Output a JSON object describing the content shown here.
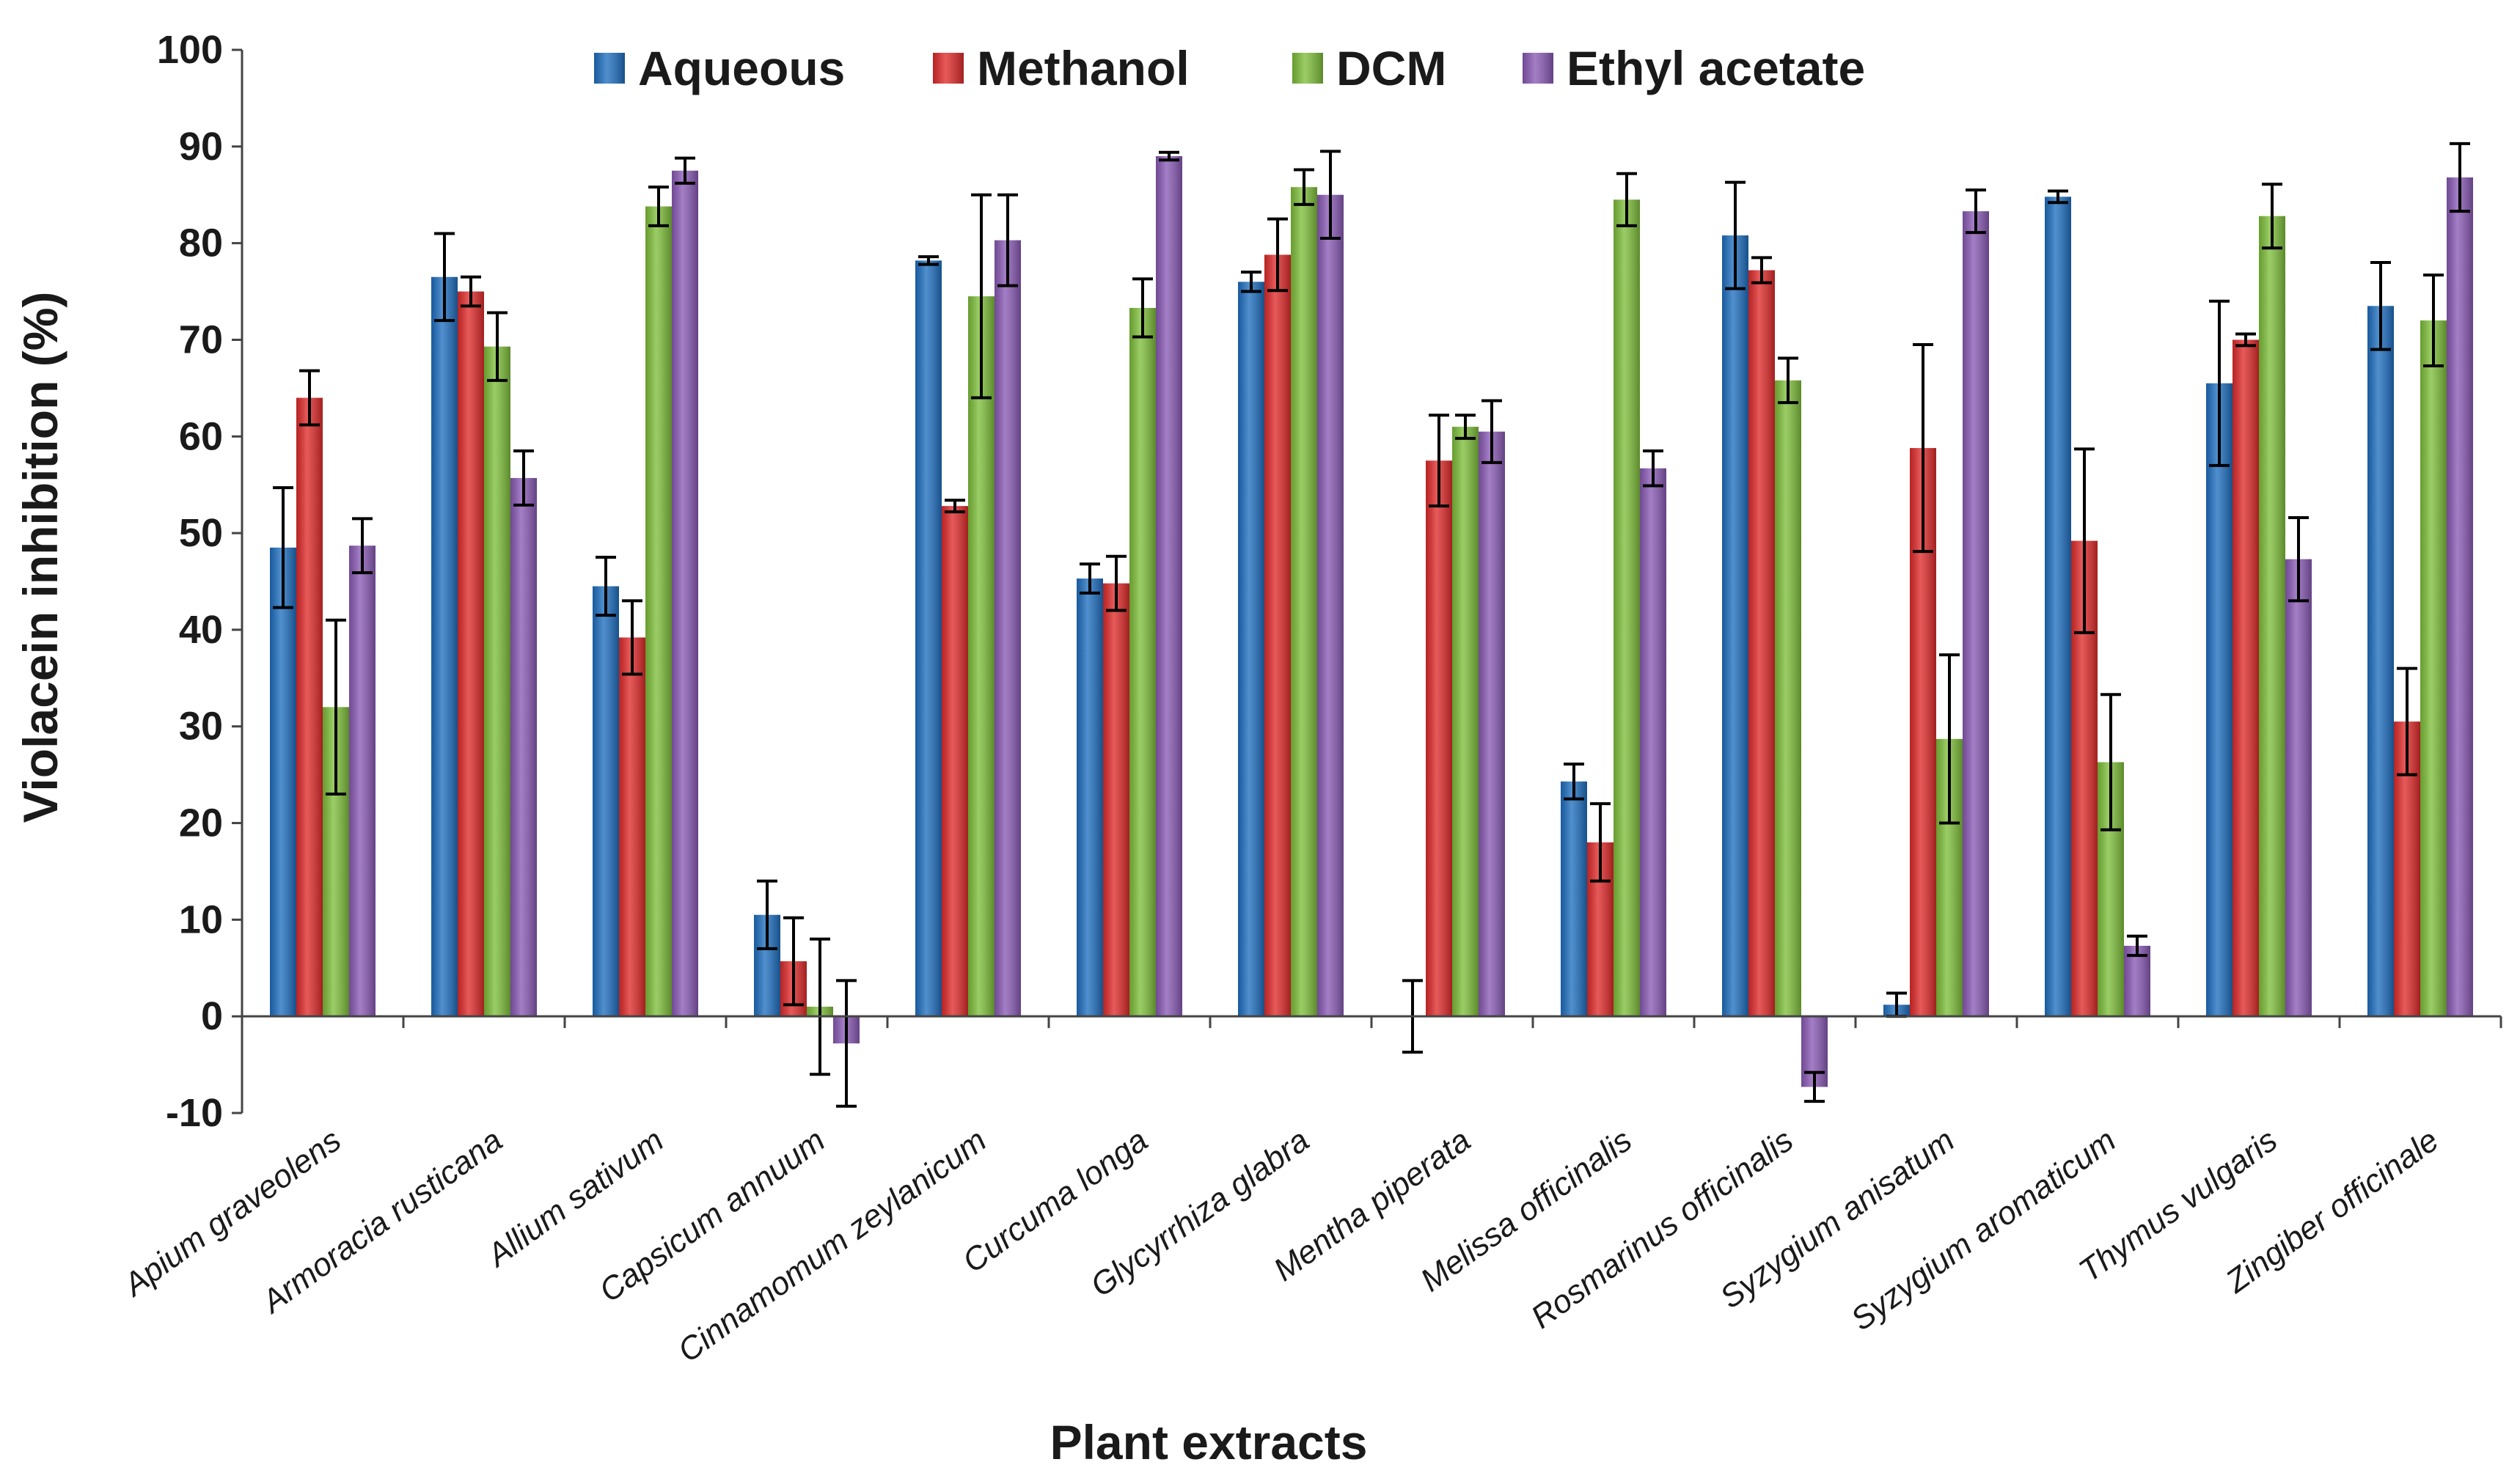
{
  "chart_data": {
    "type": "bar",
    "title": "",
    "xlabel": "Plant extracts",
    "ylabel": "Violacein inhibition (%)",
    "ylim": [
      -10,
      100
    ],
    "yticks": [
      -10,
      0,
      10,
      20,
      30,
      40,
      50,
      60,
      70,
      80,
      90,
      100
    ],
    "grid": false,
    "legend_position": "top",
    "categories": [
      "Apium graveolens",
      "Armoracia rusticana",
      "Allium sativum",
      "Capsicum annuum",
      "Cinnamomum zeylanicum",
      "Curcuma longa",
      "Glycyrrhiza glabra",
      "Mentha piperata",
      "Melissa officinalis",
      "Rosmarinus officinalis",
      "Syzygium anisatum",
      "Syzygium aromaticum",
      "Thymus vulgaris",
      "Zingiber officinale"
    ],
    "series": [
      {
        "name": "Aqueous",
        "color": "#1f6fc0",
        "values": [
          48.5,
          76.5,
          44.5,
          10.5,
          78.2,
          45.3,
          76,
          0,
          24.3,
          80.8,
          1.2,
          84.8,
          65.5,
          73.5
        ],
        "errors": [
          6.2,
          4.5,
          3,
          3.5,
          0.4,
          1.5,
          1,
          3.7,
          1.8,
          5.5,
          1.2,
          0.6,
          8.5,
          4.5
        ]
      },
      {
        "name": "Methanol",
        "color": "#e02b2b",
        "values": [
          64,
          75,
          39.2,
          5.7,
          52.8,
          44.8,
          78.8,
          57.5,
          18,
          77.2,
          58.8,
          49.2,
          70,
          30.5
        ],
        "errors": [
          2.8,
          1.5,
          3.8,
          4.5,
          0.6,
          2.8,
          3.7,
          4.7,
          4,
          1.3,
          10.7,
          9.5,
          0.6,
          5.5
        ]
      },
      {
        "name": "DCM",
        "color": "#7fbf3b",
        "values": [
          32,
          69.3,
          83.8,
          1,
          74.5,
          73.3,
          85.8,
          61,
          84.5,
          65.8,
          28.7,
          26.3,
          82.8,
          72
        ],
        "errors": [
          9,
          3.5,
          2,
          7,
          10.5,
          3,
          1.8,
          1.2,
          2.7,
          2.3,
          8.7,
          7,
          3.3,
          4.7
        ]
      },
      {
        "name": "Ethyl acetate",
        "color": "#8a5ab5",
        "values": [
          48.7,
          55.7,
          87.5,
          -2.8,
          80.3,
          89,
          85,
          60.5,
          56.7,
          -7.3,
          83.3,
          7.3,
          47.3,
          86.8
        ],
        "errors": [
          2.8,
          2.8,
          1.3,
          6.5,
          4.7,
          0.4,
          4.5,
          3.2,
          1.8,
          1.5,
          2.2,
          1,
          4.3,
          3.5
        ]
      }
    ]
  }
}
